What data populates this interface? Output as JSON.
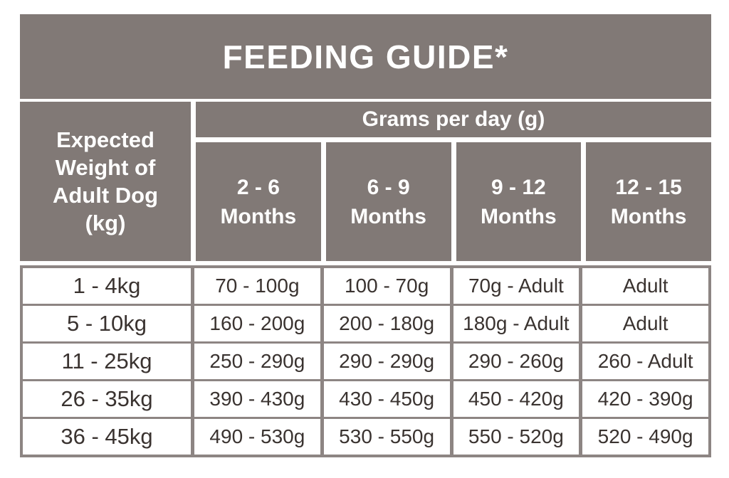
{
  "title": "FEEDING GUIDE*",
  "colors": {
    "header_taupe": "#817976",
    "grid_line": "#8d8583",
    "header_text": "#ffffff",
    "body_text": "#3a3330",
    "cell_background": "#ffffff"
  },
  "header": {
    "weight_lines": [
      "Expected",
      "Weight of",
      "Adult Dog",
      "(kg)"
    ],
    "grams_label": "Grams per day (g)",
    "months": [
      {
        "range": "2 - 6",
        "unit": "Months"
      },
      {
        "range": "6 - 9",
        "unit": "Months"
      },
      {
        "range": "9 - 12",
        "unit": "Months"
      },
      {
        "range": "12 - 15",
        "unit": "Months"
      }
    ]
  },
  "chart_data": {
    "type": "table",
    "title": "FEEDING GUIDE*",
    "column_group_header": "Grams per day (g)",
    "columns": [
      "Expected Weight of Adult Dog (kg)",
      "2 - 6 Months",
      "6 - 9 Months",
      "9 - 12 Months",
      "12 - 15 Months"
    ],
    "rows": [
      [
        "1 - 4kg",
        "70 - 100g",
        "100 - 70g",
        "70g - Adult",
        "Adult"
      ],
      [
        "5 - 10kg",
        "160 - 200g",
        "200 - 180g",
        "180g - Adult",
        "Adult"
      ],
      [
        "11 - 25kg",
        "250 - 290g",
        "290 - 290g",
        "290 - 260g",
        "260 - Adult"
      ],
      [
        "26 - 35kg",
        "390 - 430g",
        "430 - 450g",
        "450 - 420g",
        "420 - 390g"
      ],
      [
        "36 - 45kg",
        "490 - 530g",
        "530 - 550g",
        "550 - 520g",
        "520 - 490g"
      ]
    ]
  }
}
